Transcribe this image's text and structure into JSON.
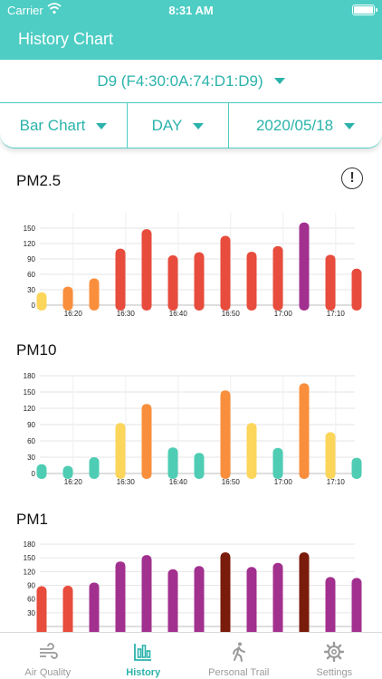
{
  "status": {
    "carrier": "Carrier",
    "time": "8:31 AM"
  },
  "header": {
    "title": "History Chart"
  },
  "device": {
    "label": "D9 (F4:30:0A:74:D1:D9)"
  },
  "filters": {
    "chart_type": "Bar Chart",
    "period": "DAY",
    "date": "2020/05/18"
  },
  "info_icon": {
    "glyph": "!"
  },
  "colors": {
    "accent": "#4ecdc4",
    "yellow": "#fcd55b",
    "orange": "#f98f3d",
    "red": "#e74c3c",
    "purple": "#a2308f",
    "teal": "#4ecdb4",
    "darkred": "#7a1c0c"
  },
  "chart_data": [
    {
      "type": "bar",
      "title": "PM2.5",
      "yticks": [
        0,
        30,
        60,
        90,
        120,
        150
      ],
      "ylim": [
        0,
        180
      ],
      "grid": true,
      "xticks": [
        "16:20",
        "16:30",
        "16:40",
        "16:50",
        "17:00",
        "17:10"
      ],
      "bars": [
        {
          "time": "16:14",
          "value": 25,
          "color": "yellow"
        },
        {
          "time": "16:19",
          "value": 36,
          "color": "orange"
        },
        {
          "time": "16:24",
          "value": 52,
          "color": "orange"
        },
        {
          "time": "16:29",
          "value": 110,
          "color": "red"
        },
        {
          "time": "16:34",
          "value": 148,
          "color": "red"
        },
        {
          "time": "16:39",
          "value": 97,
          "color": "red"
        },
        {
          "time": "16:44",
          "value": 103,
          "color": "red"
        },
        {
          "time": "16:49",
          "value": 135,
          "color": "red"
        },
        {
          "time": "16:54",
          "value": 104,
          "color": "red"
        },
        {
          "time": "16:59",
          "value": 115,
          "color": "red"
        },
        {
          "time": "17:04",
          "value": 161,
          "color": "purple"
        },
        {
          "time": "17:09",
          "value": 98,
          "color": "red"
        },
        {
          "time": "17:14",
          "value": 71,
          "color": "red"
        }
      ]
    },
    {
      "type": "bar",
      "title": "PM10",
      "yticks": [
        0,
        30,
        60,
        90,
        120,
        150,
        180
      ],
      "ylim": [
        0,
        180
      ],
      "grid": true,
      "xticks": [
        "16:20",
        "16:30",
        "16:40",
        "16:50",
        "17:00",
        "17:10"
      ],
      "bars": [
        {
          "time": "16:14",
          "value": 17,
          "color": "teal"
        },
        {
          "time": "16:19",
          "value": 14,
          "color": "teal"
        },
        {
          "time": "16:24",
          "value": 30,
          "color": "teal"
        },
        {
          "time": "16:29",
          "value": 93,
          "color": "yellow"
        },
        {
          "time": "16:34",
          "value": 128,
          "color": "orange"
        },
        {
          "time": "16:39",
          "value": 48,
          "color": "teal"
        },
        {
          "time": "16:44",
          "value": 38,
          "color": "teal"
        },
        {
          "time": "16:49",
          "value": 153,
          "color": "orange"
        },
        {
          "time": "16:54",
          "value": 93,
          "color": "yellow"
        },
        {
          "time": "16:59",
          "value": 47,
          "color": "teal"
        },
        {
          "time": "17:04",
          "value": 166,
          "color": "orange"
        },
        {
          "time": "17:09",
          "value": 76,
          "color": "yellow"
        },
        {
          "time": "17:14",
          "value": 29,
          "color": "teal"
        }
      ]
    },
    {
      "type": "bar",
      "title": "PM1",
      "yticks": [
        30,
        60,
        90,
        120,
        150,
        180
      ],
      "ylim": [
        0,
        180
      ],
      "grid": true,
      "xticks": [],
      "bars": [
        {
          "time": "16:14",
          "value": 88,
          "color": "red"
        },
        {
          "time": "16:19",
          "value": 89,
          "color": "red"
        },
        {
          "time": "16:24",
          "value": 96,
          "color": "purple"
        },
        {
          "time": "16:29",
          "value": 142,
          "color": "purple"
        },
        {
          "time": "16:34",
          "value": 156,
          "color": "purple"
        },
        {
          "time": "16:39",
          "value": 125,
          "color": "purple"
        },
        {
          "time": "16:44",
          "value": 132,
          "color": "purple"
        },
        {
          "time": "16:49",
          "value": 162,
          "color": "darkred"
        },
        {
          "time": "16:54",
          "value": 130,
          "color": "purple"
        },
        {
          "time": "16:59",
          "value": 139,
          "color": "purple"
        },
        {
          "time": "17:04",
          "value": 162,
          "color": "darkred"
        },
        {
          "time": "17:09",
          "value": 108,
          "color": "purple"
        },
        {
          "time": "17:14",
          "value": 106,
          "color": "purple"
        }
      ]
    }
  ],
  "tabs": [
    {
      "label": "Air Quality",
      "icon": "wind-icon",
      "active": false
    },
    {
      "label": "History",
      "icon": "bar-chart-icon",
      "active": true
    },
    {
      "label": "Personal Trail",
      "icon": "walking-person-icon",
      "active": false
    },
    {
      "label": "Settings",
      "icon": "gear-icon",
      "active": false
    }
  ]
}
